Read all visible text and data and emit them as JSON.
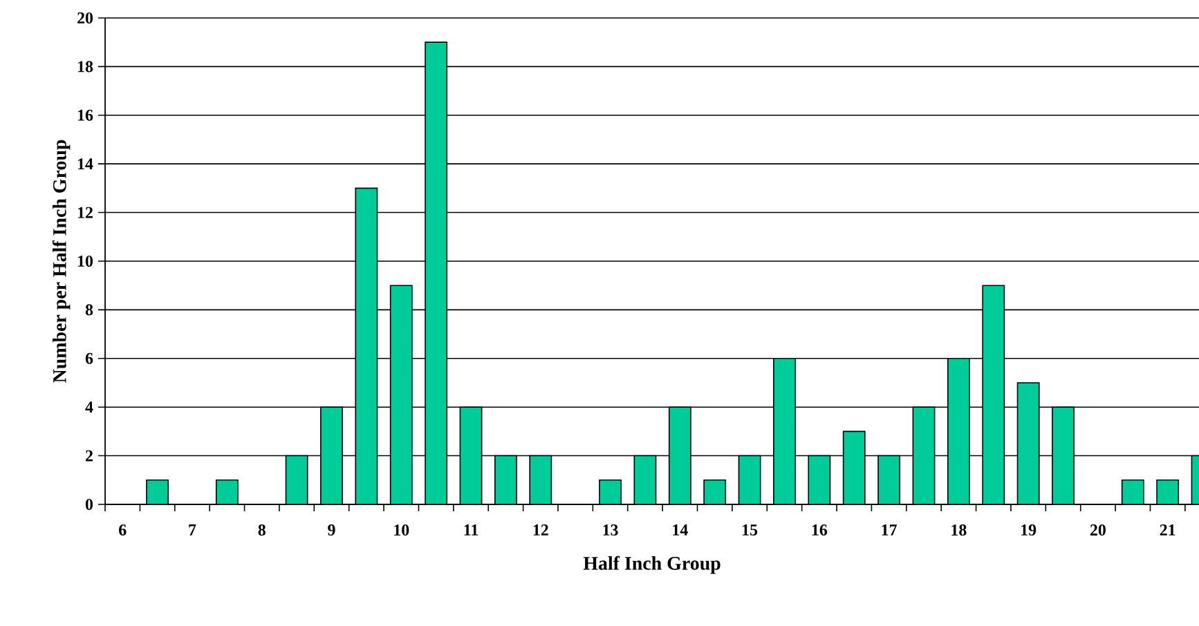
{
  "chart_data": {
    "type": "bar",
    "xlabel": "Half Inch Group",
    "ylabel": "Number per Half Inch Group",
    "categories": [
      "6",
      null,
      "7",
      null,
      "8",
      null,
      "9",
      null,
      "10",
      null,
      "11",
      null,
      "12",
      null,
      "13",
      null,
      "14",
      null,
      "15",
      null,
      "16",
      null,
      "17",
      null,
      "18",
      null,
      "19",
      null,
      "20",
      null,
      "21",
      null
    ],
    "values": [
      0,
      1,
      0,
      1,
      0,
      2,
      4,
      13,
      9,
      19,
      4,
      2,
      2,
      0,
      1,
      2,
      4,
      1,
      2,
      6,
      2,
      3,
      2,
      4,
      6,
      9,
      5,
      4,
      0,
      1,
      1,
      2
    ],
    "color": "#00cc99",
    "ylim": [
      0,
      20
    ],
    "yticks": [
      0,
      2,
      4,
      6,
      8,
      10,
      12,
      14,
      16,
      18,
      20
    ],
    "grid": "y"
  }
}
